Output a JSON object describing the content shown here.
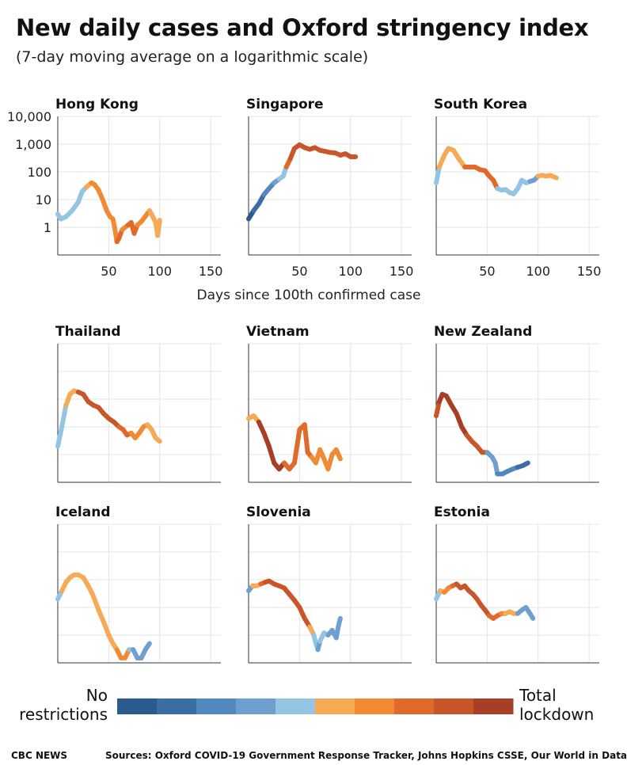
{
  "title": "New daily cases and Oxford stringency index",
  "subtitle": "(7-day moving average on a logarithmic scale)",
  "chart_data": {
    "type": "line",
    "y_scale": "log",
    "ylim": [
      0.1,
      10000
    ],
    "xlim": [
      0,
      160
    ],
    "y_ticks": [
      1,
      10,
      100,
      1000,
      10000
    ],
    "y_tick_labels": [
      "1",
      "10",
      "100",
      "1,000",
      "10,000"
    ],
    "x_ticks": [
      50,
      100,
      150
    ],
    "x_tick_labels": [
      "50",
      "100",
      "150"
    ],
    "xlabel": "Days since 100th confirmed case",
    "grid": true,
    "color_encoding": "Oxford stringency index",
    "legend": {
      "low_label_1": "No",
      "low_label_2": "restrictions",
      "high_label_1": "Total",
      "high_label_2": "lockdown",
      "colors": [
        "#2b5b8c",
        "#3b6fa4",
        "#5288bd",
        "#6f9fcf",
        "#93c4e2",
        "#f7aa56",
        "#f08a34",
        "#e06a2a",
        "#c9562a",
        "#a63f25"
      ]
    },
    "panels": [
      {
        "name": "Hong Kong",
        "points": [
          [
            0,
            3,
            4
          ],
          [
            3,
            2,
            4
          ],
          [
            8,
            2.4,
            4
          ],
          [
            14,
            4,
            4
          ],
          [
            20,
            8,
            4
          ],
          [
            24,
            20,
            4
          ],
          [
            28,
            28,
            5
          ],
          [
            33,
            40,
            6
          ],
          [
            36,
            35,
            6
          ],
          [
            40,
            22,
            6
          ],
          [
            44,
            10,
            6
          ],
          [
            48,
            4,
            6
          ],
          [
            51,
            2.5,
            6
          ],
          [
            54,
            2,
            6
          ],
          [
            56,
            0.9,
            6
          ],
          [
            58,
            0.3,
            7
          ],
          [
            60,
            0.4,
            7
          ],
          [
            63,
            0.8,
            6
          ],
          [
            66,
            1,
            6
          ],
          [
            69,
            1.2,
            7
          ],
          [
            72,
            1.5,
            7
          ],
          [
            75,
            0.6,
            7
          ],
          [
            78,
            1.2,
            6
          ],
          [
            82,
            1.6,
            6
          ],
          [
            86,
            2.5,
            6
          ],
          [
            90,
            4,
            5
          ],
          [
            93,
            2.5,
            5
          ],
          [
            96,
            1.5,
            5
          ],
          [
            98,
            0.5,
            5
          ],
          [
            100,
            1.8,
            5
          ]
        ]
      },
      {
        "name": "Singapore",
        "points": [
          [
            0,
            2,
            0
          ],
          [
            5,
            4,
            1
          ],
          [
            10,
            7,
            1
          ],
          [
            15,
            15,
            2
          ],
          [
            20,
            25,
            2
          ],
          [
            25,
            40,
            3
          ],
          [
            30,
            55,
            4
          ],
          [
            34,
            70,
            4
          ],
          [
            37,
            150,
            7
          ],
          [
            41,
            300,
            8
          ],
          [
            45,
            700,
            8
          ],
          [
            50,
            950,
            8
          ],
          [
            55,
            750,
            8
          ],
          [
            60,
            650,
            8
          ],
          [
            65,
            750,
            8
          ],
          [
            70,
            600,
            8
          ],
          [
            75,
            550,
            8
          ],
          [
            80,
            500,
            8
          ],
          [
            85,
            480,
            8
          ],
          [
            90,
            400,
            8
          ],
          [
            95,
            450,
            8
          ],
          [
            100,
            350,
            8
          ],
          [
            105,
            350,
            8
          ]
        ]
      },
      {
        "name": "South Korea",
        "points": [
          [
            0,
            40,
            4
          ],
          [
            3,
            150,
            5
          ],
          [
            8,
            400,
            5
          ],
          [
            12,
            700,
            5
          ],
          [
            17,
            600,
            5
          ],
          [
            22,
            300,
            5
          ],
          [
            28,
            150,
            7
          ],
          [
            33,
            150,
            7
          ],
          [
            38,
            150,
            7
          ],
          [
            43,
            120,
            7
          ],
          [
            48,
            110,
            7
          ],
          [
            52,
            70,
            7
          ],
          [
            56,
            50,
            7
          ],
          [
            60,
            25,
            4
          ],
          [
            64,
            22,
            4
          ],
          [
            68,
            23,
            4
          ],
          [
            72,
            18,
            4
          ],
          [
            76,
            16,
            4
          ],
          [
            80,
            25,
            4
          ],
          [
            84,
            50,
            4
          ],
          [
            88,
            40,
            4
          ],
          [
            92,
            45,
            3
          ],
          [
            96,
            50,
            3
          ],
          [
            100,
            70,
            5
          ],
          [
            104,
            75,
            5
          ],
          [
            108,
            70,
            5
          ],
          [
            112,
            75,
            5
          ],
          [
            118,
            60,
            5
          ]
        ]
      },
      {
        "name": "Thailand",
        "points": [
          [
            0,
            2,
            4
          ],
          [
            4,
            10,
            4
          ],
          [
            8,
            60,
            5
          ],
          [
            12,
            150,
            5
          ],
          [
            16,
            200,
            5
          ],
          [
            20,
            180,
            8
          ],
          [
            25,
            150,
            8
          ],
          [
            30,
            80,
            8
          ],
          [
            35,
            60,
            8
          ],
          [
            40,
            50,
            8
          ],
          [
            45,
            30,
            8
          ],
          [
            50,
            20,
            8
          ],
          [
            55,
            15,
            8
          ],
          [
            60,
            10,
            7
          ],
          [
            64,
            8,
            7
          ],
          [
            68,
            5,
            7
          ],
          [
            72,
            6,
            6
          ],
          [
            76,
            4,
            6
          ],
          [
            80,
            6,
            6
          ],
          [
            84,
            10,
            6
          ],
          [
            88,
            12,
            5
          ],
          [
            92,
            8,
            5
          ],
          [
            96,
            4,
            5
          ],
          [
            100,
            3,
            5
          ]
        ]
      },
      {
        "name": "Vietnam",
        "points": [
          [
            0,
            20,
            5
          ],
          [
            5,
            25,
            5
          ],
          [
            10,
            15,
            9
          ],
          [
            15,
            6,
            9
          ],
          [
            20,
            2,
            9
          ],
          [
            25,
            0.5,
            9
          ],
          [
            30,
            0.3,
            9
          ],
          [
            35,
            0.5,
            7
          ],
          [
            40,
            0.3,
            7
          ],
          [
            45,
            0.5,
            7
          ],
          [
            50,
            8,
            7
          ],
          [
            55,
            12,
            7
          ],
          [
            58,
            1.2,
            7
          ],
          [
            62,
            0.8,
            6
          ],
          [
            66,
            0.5,
            6
          ],
          [
            70,
            1.5,
            6
          ],
          [
            74,
            0.7,
            6
          ],
          [
            78,
            0.3,
            6
          ],
          [
            82,
            1,
            6
          ],
          [
            86,
            1.5,
            6
          ],
          [
            90,
            0.7,
            6
          ]
        ]
      },
      {
        "name": "New Zealand",
        "points": [
          [
            0,
            25,
            8
          ],
          [
            3,
            80,
            9
          ],
          [
            6,
            150,
            9
          ],
          [
            10,
            130,
            9
          ],
          [
            15,
            60,
            9
          ],
          [
            20,
            30,
            9
          ],
          [
            25,
            10,
            9
          ],
          [
            30,
            5,
            8
          ],
          [
            35,
            3,
            8
          ],
          [
            40,
            2,
            8
          ],
          [
            45,
            1.2,
            8
          ],
          [
            50,
            1.2,
            3
          ],
          [
            55,
            0.8,
            3
          ],
          [
            58,
            0.5,
            3
          ],
          [
            60,
            0.2,
            2
          ],
          [
            65,
            0.2,
            2
          ],
          [
            70,
            0.25,
            2
          ],
          [
            75,
            0.3,
            2
          ],
          [
            80,
            0.35,
            1
          ],
          [
            85,
            0.4,
            1
          ],
          [
            90,
            0.5,
            0
          ]
        ]
      },
      {
        "name": "Iceland",
        "points": [
          [
            0,
            20,
            4
          ],
          [
            4,
            40,
            5
          ],
          [
            8,
            80,
            5
          ],
          [
            12,
            120,
            5
          ],
          [
            16,
            150,
            5
          ],
          [
            20,
            150,
            5
          ],
          [
            25,
            120,
            5
          ],
          [
            30,
            60,
            5
          ],
          [
            35,
            25,
            5
          ],
          [
            40,
            8,
            5
          ],
          [
            45,
            3,
            5
          ],
          [
            50,
            1,
            5
          ],
          [
            54,
            0.5,
            5
          ],
          [
            58,
            0.3,
            6
          ],
          [
            62,
            0.15,
            6
          ],
          [
            66,
            0.15,
            6
          ],
          [
            70,
            0.3,
            4
          ],
          [
            74,
            0.3,
            3
          ],
          [
            78,
            0.15,
            3
          ],
          [
            82,
            0.15,
            3
          ],
          [
            86,
            0.3,
            3
          ],
          [
            90,
            0.5,
            3
          ]
        ]
      },
      {
        "name": "Slovenia",
        "points": [
          [
            0,
            40,
            3
          ],
          [
            4,
            60,
            5
          ],
          [
            8,
            60,
            5
          ],
          [
            12,
            70,
            7
          ],
          [
            16,
            80,
            8
          ],
          [
            20,
            90,
            8
          ],
          [
            25,
            70,
            8
          ],
          [
            30,
            60,
            8
          ],
          [
            35,
            50,
            8
          ],
          [
            40,
            30,
            8
          ],
          [
            45,
            18,
            8
          ],
          [
            50,
            10,
            8
          ],
          [
            55,
            4,
            8
          ],
          [
            60,
            2,
            5
          ],
          [
            64,
            1,
            4
          ],
          [
            66,
            0.5,
            4
          ],
          [
            68,
            0.3,
            3
          ],
          [
            70,
            0.6,
            4
          ],
          [
            74,
            1.2,
            4
          ],
          [
            78,
            1,
            3
          ],
          [
            82,
            1.5,
            3
          ],
          [
            86,
            0.8,
            3
          ],
          [
            88,
            2,
            3
          ],
          [
            90,
            4,
            3
          ]
        ]
      },
      {
        "name": "Estonia",
        "points": [
          [
            0,
            20,
            4
          ],
          [
            4,
            40,
            5
          ],
          [
            8,
            35,
            6
          ],
          [
            12,
            50,
            6
          ],
          [
            16,
            60,
            7
          ],
          [
            20,
            70,
            8
          ],
          [
            24,
            50,
            8
          ],
          [
            28,
            60,
            8
          ],
          [
            32,
            40,
            8
          ],
          [
            36,
            30,
            8
          ],
          [
            40,
            20,
            8
          ],
          [
            44,
            12,
            8
          ],
          [
            48,
            8,
            8
          ],
          [
            52,
            5,
            7
          ],
          [
            56,
            4,
            7
          ],
          [
            60,
            5,
            7
          ],
          [
            64,
            6,
            6
          ],
          [
            68,
            6,
            5
          ],
          [
            72,
            7,
            5
          ],
          [
            76,
            6,
            5
          ],
          [
            80,
            6,
            3
          ],
          [
            84,
            8,
            3
          ],
          [
            88,
            10,
            3
          ],
          [
            92,
            6,
            3
          ],
          [
            95,
            4,
            3
          ]
        ]
      }
    ]
  },
  "credits": {
    "left": "CBC NEWS",
    "right": "Sources: Oxford COVID-19 Government Response Tracker, Johns Hopkins CSSE, Our World in Data"
  }
}
